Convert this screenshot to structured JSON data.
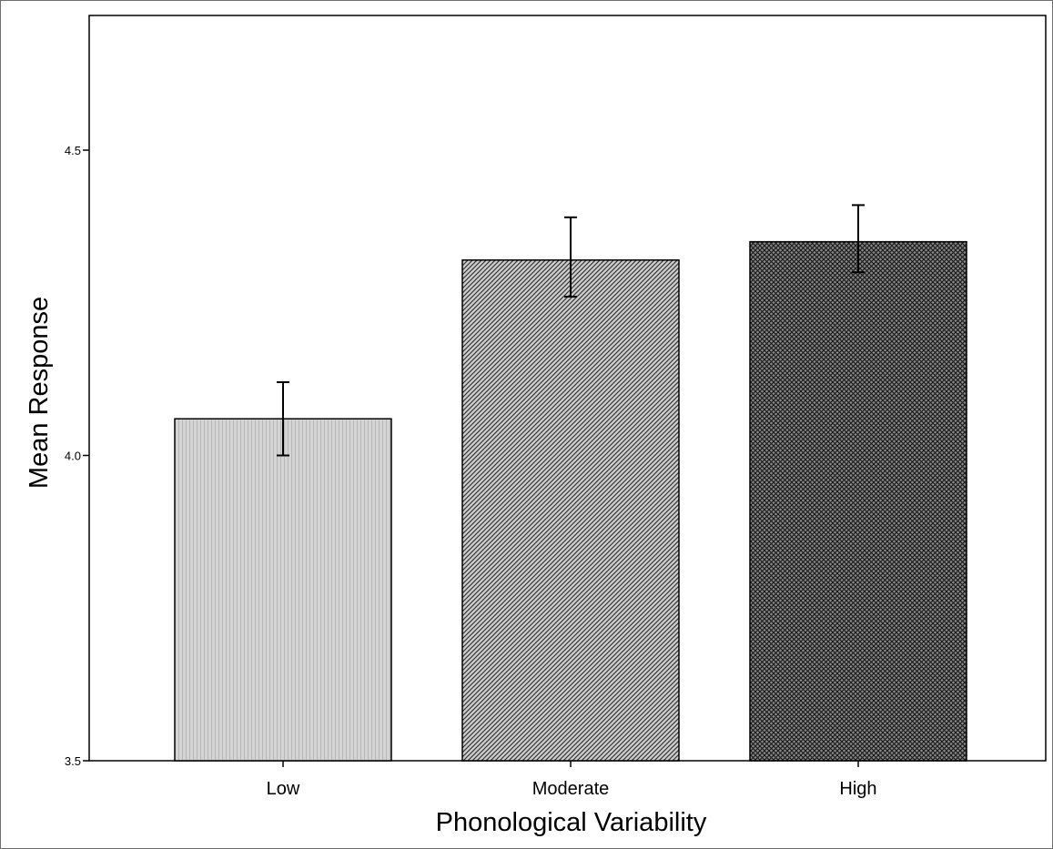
{
  "chart_data": {
    "type": "bar",
    "title": "",
    "xlabel": "Phonological Variability",
    "ylabel": "Mean Response",
    "categories": [
      "Low",
      "Moderate",
      "High"
    ],
    "values": [
      4.06,
      4.32,
      4.35
    ],
    "error_bars": [
      {
        "low": 4.0,
        "high": 4.12
      },
      {
        "low": 4.26,
        "high": 4.39
      },
      {
        "low": 4.3,
        "high": 4.41
      }
    ],
    "ylim": [
      3.5,
      4.5
    ],
    "y_ticks": [
      "3.5",
      "4.0",
      "4.5"
    ],
    "y_tick_values": [
      3.5,
      4.0,
      4.5
    ],
    "grid": false,
    "legend": "none",
    "bar_fills": [
      "#cfcfcf",
      "#a9a9a9",
      "#5c5c5c"
    ]
  }
}
